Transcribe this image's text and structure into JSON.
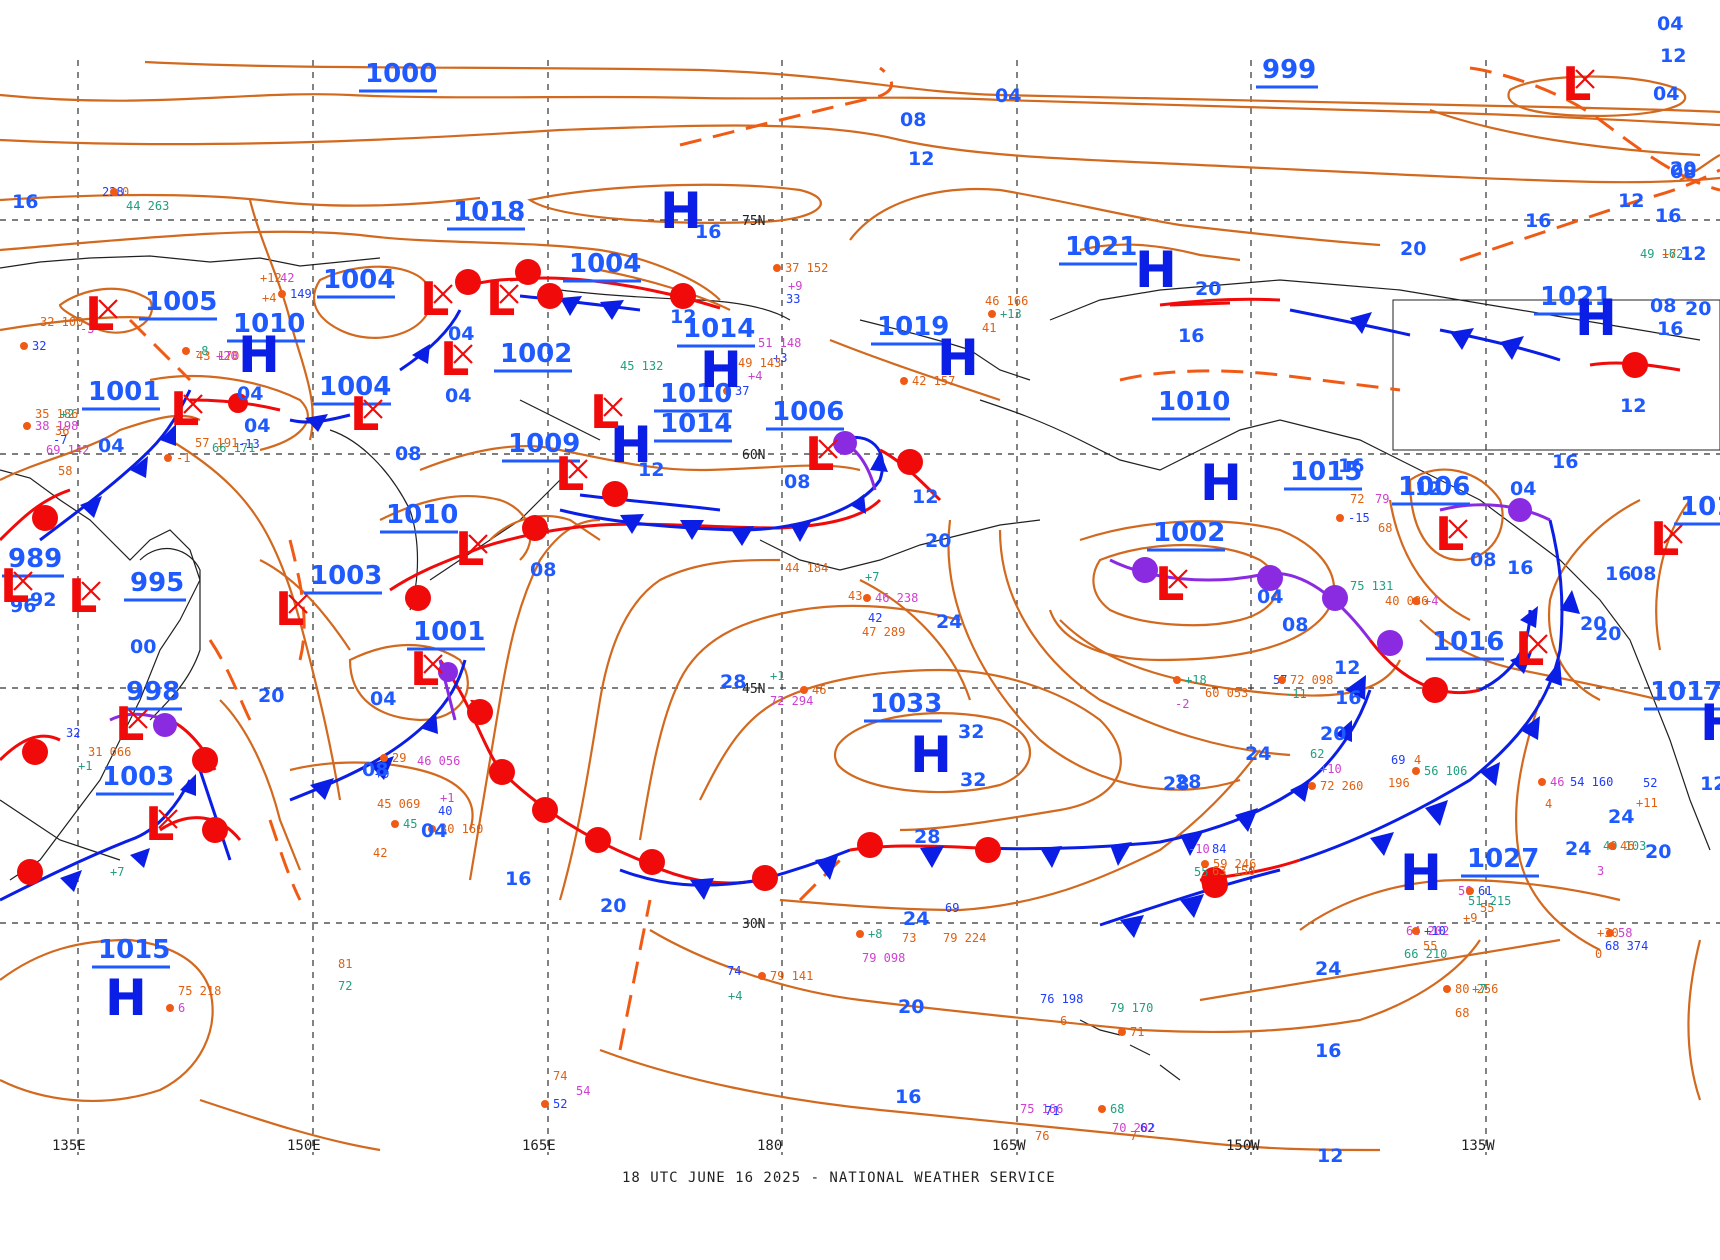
{
  "map": {
    "footer": "18 UTC JUNE 16 2025 - NATIONAL WEATHER SERVICE",
    "colors": {
      "isobar": "#d2691e",
      "high": "#0a1ee6",
      "low": "#f00a0a",
      "cold_front": "#0a1ee6",
      "warm_front": "#f00a0a",
      "occluded": "#8a2be2",
      "label": "#1e5aff"
    },
    "latitude_labels": [
      "75N",
      "60N",
      "45N",
      "30N"
    ],
    "longitude_labels": [
      "135E",
      "150E",
      "165E",
      "180",
      "165W",
      "150W",
      "135W"
    ],
    "high_symbol": "H",
    "low_symbol": "L",
    "pressure_centers": {
      "c1000": "1000",
      "c999": "999",
      "c1018": "1018",
      "c1021a": "1021",
      "c1021b": "1021",
      "c1004a": "1004",
      "c1004b": "1004",
      "c1004c": "1004",
      "c1005": "1005",
      "c1010a": "1010",
      "c1002a": "1002",
      "c1014a": "1014",
      "c1019": "1019",
      "c1001a": "1001",
      "c1010b": "1010",
      "c1014b": "1014",
      "c1006a": "1006",
      "c1009": "1009",
      "c1010c": "1010",
      "c1015a": "1015",
      "c1006b": "1006",
      "c1010d": "1010",
      "c989": "989",
      "c995": "995",
      "c1003a": "1003",
      "c1002b": "1002",
      "c1001b": "1001",
      "c998": "998",
      "c1016": "1016",
      "c1033": "1033",
      "c1003b": "1003",
      "c1017": "1017",
      "c1015b": "1015",
      "c1027": "1027",
      "c1015c": "101"
    },
    "isobar_labels": {
      "i1": "04",
      "i2": "08",
      "i3": "12",
      "i4": "16",
      "i5": "16",
      "i6": "16",
      "i7": "12",
      "i8": "08",
      "i9": "20",
      "i10": "20",
      "i11": "16",
      "i12": "12",
      "i13": "20",
      "i14": "04",
      "i15": "04",
      "i16": "04",
      "i17": "04",
      "i18": "08",
      "i19": "04",
      "i20": "08",
      "i21": "12",
      "i22": "12",
      "i23": "08",
      "i24": "04",
      "i25": "12",
      "i26": "16",
      "i27": "16",
      "i28": "20",
      "i29": "24",
      "i30": "28",
      "i31": "32",
      "i32": "32",
      "i33": "28",
      "i34": "28",
      "i35": "24",
      "i36": "20",
      "i37": "16",
      "i38": "04",
      "i39": "08",
      "i40": "12",
      "i41": "16",
      "i42": "20",
      "i43": "24",
      "i44": "28",
      "i45": "24",
      "i46": "20",
      "i47": "24",
      "i48": "20",
      "i49": "16",
      "i50": "16",
      "i51": "12",
      "i52": "12",
      "i53": "16",
      "i54": "20",
      "i55": "08",
      "i56": "12",
      "i57": "04",
      "i58": "08",
      "i59": "12",
      "i60": "16",
      "i61": "20",
      "i62": "04",
      "i63": "00",
      "i64": "96",
      "i65": "92",
      "i66": "04",
      "i67": "08",
      "i68": "04",
      "i69": "24",
      "i70": "20",
      "i71": "16",
      "i72": "08",
      "i73": "12",
      "i74": "16",
      "i75": "20",
      "i76": "24",
      "i77": "20"
    },
    "station_samples": [
      "37 152",
      "+9",
      "33",
      "46 166",
      "+13",
      "41",
      "51 148",
      "+3",
      "42 157",
      "45 132",
      "49 143",
      "+4",
      "37",
      "44 184",
      "+7",
      "43",
      "46 238",
      "42",
      "47 289",
      "+1",
      "46",
      "72 294",
      "69",
      "79 224",
      "+8",
      "73",
      "79 098",
      "74",
      "79 141",
      "+4",
      "74",
      "54",
      "52",
      "81",
      "72",
      "75 218",
      "6",
      "76 198",
      "6",
      "79 170",
      "71",
      "75 166",
      "71",
      "76",
      "68",
      "7",
      "70 202",
      "62",
      "80 256",
      "+7",
      "68",
      "64 202",
      "+10",
      "55",
      "66 210",
      "+30",
      "58",
      "68 374",
      "0",
      "62",
      "72 260",
      "+10",
      "69",
      "4",
      "56 106",
      "196",
      "-10",
      "84",
      "59 246",
      "55",
      "63 150",
      "50",
      "61",
      "55",
      "51 215",
      "+9",
      "46",
      "54 160",
      "4",
      "49 103",
      "46",
      "3",
      "52",
      "+11",
      "+18",
      "60 053",
      "-2",
      "57",
      "72 098",
      "-11",
      "72",
      "79",
      "-15",
      "68",
      "75 131",
      "40 086",
      "+4",
      "32",
      "31 066",
      "+1",
      "29",
      "46 056",
      "+9",
      "45 069",
      "45",
      "42",
      "+1",
      "40",
      "30 160",
      "+7",
      "32 100",
      "-3",
      "32",
      "35 186",
      "+2",
      "36",
      "38 198",
      "-7",
      "57 191",
      "66 171",
      "-1",
      "69 142",
      "-13",
      "58",
      "-8",
      "43 170",
      "+20",
      "228",
      "0",
      "44 263",
      "+12",
      "42",
      "149",
      "+4",
      "49 162",
      "+7"
    ]
  }
}
